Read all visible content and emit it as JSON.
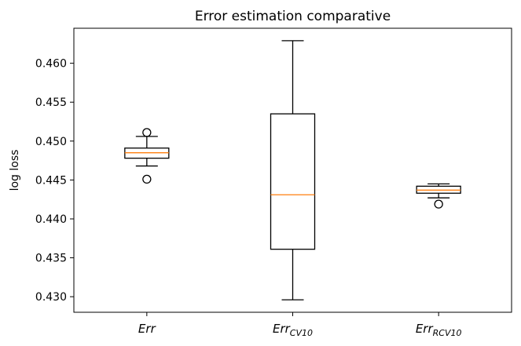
{
  "chart_data": {
    "type": "box",
    "title": "Error estimation comparative",
    "xlabel": "",
    "ylabel": "log loss",
    "ylim": [
      0.428,
      0.4645
    ],
    "yticks": [
      "0.430",
      "0.435",
      "0.440",
      "0.445",
      "0.450",
      "0.455",
      "0.460"
    ],
    "grid": false,
    "categories": [
      {
        "base": "Err",
        "sub": ""
      },
      {
        "base": "Err",
        "sub": "CV10"
      },
      {
        "base": "Err",
        "sub": "RCV10"
      }
    ],
    "boxes": [
      {
        "whisker_low": 0.4468,
        "q1": 0.4478,
        "median": 0.4485,
        "q3": 0.4491,
        "whisker_high": 0.4506,
        "outliers": [
          0.4451,
          0.4511
        ]
      },
      {
        "whisker_low": 0.4296,
        "q1": 0.4361,
        "median": 0.4431,
        "q3": 0.4535,
        "whisker_high": 0.4629,
        "outliers": []
      },
      {
        "whisker_low": 0.4427,
        "q1": 0.4433,
        "median": 0.4437,
        "q3": 0.4442,
        "whisker_high": 0.4445,
        "outliers": [
          0.4419
        ]
      }
    ],
    "colors": {
      "box": "#000000",
      "median": "#ff7f0e"
    }
  }
}
